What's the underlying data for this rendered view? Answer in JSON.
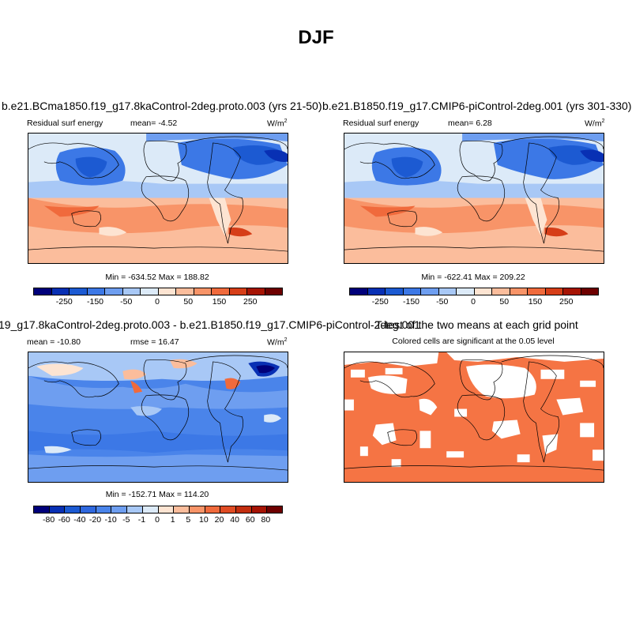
{
  "title": "DJF",
  "panels": [
    {
      "title": "b.e21.BCma1850.f19_g17.8kaControl-2deg.proto.003 (yrs 21-50)",
      "left_label": "Residual surf energy",
      "center_label": "mean=  -4.52",
      "units_base": "W/m",
      "units_exp": "2",
      "minmax": "Min = -634.52 Max = 188.82",
      "colorbar": {
        "colors": [
          "#00007a",
          "#0830b4",
          "#1c5ad2",
          "#3c78e6",
          "#6e9ef0",
          "#a8c8f6",
          "#dceaf8",
          "#fde4d2",
          "#fbbd9c",
          "#f89468",
          "#f06a3c",
          "#d63e18",
          "#a61404",
          "#6e0000"
        ],
        "labels": [
          "-250",
          "-150",
          "-50",
          "0",
          "50",
          "150",
          "250"
        ]
      }
    },
    {
      "title": "b.e21.B1850.f19_g17.CMIP6-piControl-2deg.001 (yrs 301-330)",
      "left_label": "Residual surf energy",
      "center_label": "mean=   6.28",
      "units_base": "W/m",
      "units_exp": "2",
      "minmax": "Min = -622.41 Max = 209.22",
      "colorbar": {
        "colors": [
          "#00007a",
          "#0830b4",
          "#1c5ad2",
          "#3c78e6",
          "#6e9ef0",
          "#a8c8f6",
          "#dceaf8",
          "#fde4d2",
          "#fbbd9c",
          "#f89468",
          "#f06a3c",
          "#d63e18",
          "#a61404",
          "#6e0000"
        ],
        "labels": [
          "-250",
          "-150",
          "-50",
          "0",
          "50",
          "150",
          "250"
        ]
      }
    },
    {
      "title": "19_g17.8kaControl-2deg.proto.003 - b.e21.B1850.f19_g17.CMIP6-piControl-2deg.001",
      "left_label": "mean = -10.80",
      "center_label": "rmse =  16.47",
      "units_base": "W/m",
      "units_exp": "2",
      "minmax": "Min = -152.71 Max = 114.20",
      "colorbar": {
        "colors": [
          "#00007a",
          "#0830b4",
          "#1c5ad2",
          "#2f68de",
          "#4a84ea",
          "#6e9ef0",
          "#a8c8f6",
          "#dceaf8",
          "#fde4d2",
          "#fbbd9c",
          "#f89468",
          "#f06a3c",
          "#e04c24",
          "#c22e0e",
          "#a61404",
          "#6e0000"
        ],
        "labels": [
          "-80",
          "-60",
          "-40",
          "-20",
          "-10",
          "-5",
          "-1",
          "0",
          "1",
          "5",
          "10",
          "20",
          "40",
          "60",
          "80"
        ]
      }
    },
    {
      "title": "T-test of the two means at each grid point",
      "subtitle": "Colored cells are significant at the 0.05 level",
      "color": "#f57444"
    }
  ]
}
